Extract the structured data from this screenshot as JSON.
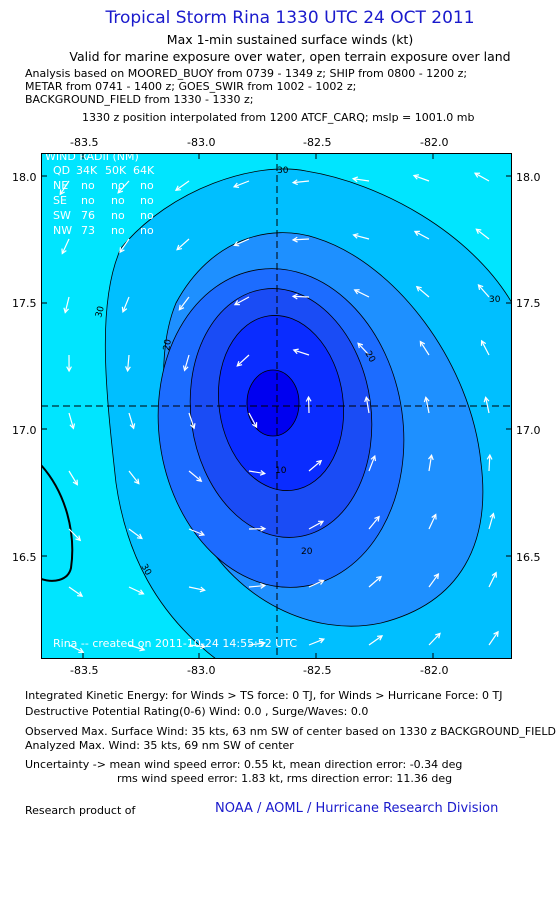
{
  "header": {
    "title": "Tropical Storm Rina 1330 UTC 24 OCT 2011",
    "subtitle1": "Max 1-min sustained surface winds (kt)",
    "subtitle2": "Valid for marine exposure over water, open terrain exposure over land",
    "analysis1": "Analysis based on MOORED_BUOY from 0739 - 1349 z; SHIP from 0800 - 1200 z;",
    "analysis2": "METAR from 0741 - 1400 z; GOES_SWIR from 1002 - 1002 z;",
    "analysis3": "BACKGROUND_FIELD from 1330 - 1330 z;",
    "position_note": "1330 z position interpolated from 1200 ATCF_CARQ; mslp = 1001.0 mb"
  },
  "map": {
    "lon_ticks": [
      "-83.5",
      "-83.0",
      "-82.5",
      "-82.0"
    ],
    "lat_ticks": [
      "18.0",
      "17.5",
      "17.0",
      "16.5"
    ],
    "contour_labels": [
      "30",
      "30",
      "30",
      "30",
      "20",
      "20",
      "20",
      "10"
    ],
    "created_note": "Rina -- created on 2011-10-24 14:55:52 UTC",
    "colors": {
      "outer": "#00e5ff",
      "band30": "#00bfff",
      "band20": "#1e90ff",
      "band15": "#1c6cff",
      "band10": "#1a4cf5",
      "band5": "#0a2cff",
      "core": "#0000f0"
    }
  },
  "wind_radii": {
    "header": "WIND RADII (NM)",
    "columns": [
      "QD",
      "34K",
      "50K",
      "64K"
    ],
    "rows": [
      {
        "q": "NE",
        "v34": "no",
        "v50": "no",
        "v64": "no"
      },
      {
        "q": "SE",
        "v34": "no",
        "v50": "no",
        "v64": "no"
      },
      {
        "q": "SW",
        "v34": "76",
        "v50": "no",
        "v64": "no"
      },
      {
        "q": "NW",
        "v34": "73",
        "v50": "no",
        "v64": "no"
      }
    ]
  },
  "stats": {
    "ike": "Integrated Kinetic Energy:  for Winds > TS force: 0 TJ,  for Winds > Hurricane Force: 0 TJ",
    "dpr": "Destructive Potential Rating(0-6)   Wind: 0.0 , Surge/Waves: 0.0",
    "observed": "Observed Max. Surface Wind: 35 kts, 63 nm SW of center based on 1330 z BACKGROUND_FIELD",
    "analyzed": "Analyzed Max. Wind: 35 kts, 69 nm SW of center",
    "uncert1": "Uncertainty -> mean wind speed error: 0.55 kt,   mean direction error:  -0.34 deg",
    "uncert2": "rms wind speed error: 1.83 kt,   rms direction error: 11.36 deg"
  },
  "footer": {
    "research": "Research product of",
    "org": "NOAA / AOML / Hurricane Research Division"
  }
}
